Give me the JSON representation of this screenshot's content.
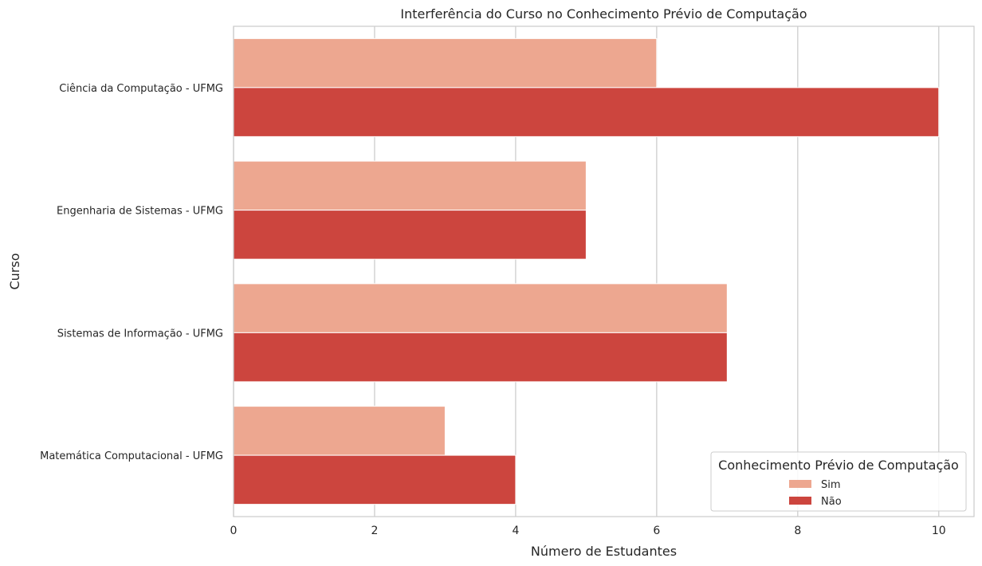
{
  "chart_data": {
    "type": "bar",
    "orientation": "horizontal",
    "title": "Interferência do Curso no Conhecimento Prévio de Computação",
    "xlabel": "Número de Estudantes",
    "ylabel": "Curso",
    "xlim": [
      0,
      10.5
    ],
    "xticks": [
      0,
      2,
      4,
      6,
      8,
      10
    ],
    "grid": true,
    "categories": [
      "Ciência da Computação - UFMG",
      "Engenharia de Sistemas - UFMG",
      "Sistemas de Informação - UFMG",
      "Matemática Computacional - UFMG"
    ],
    "series": [
      {
        "name": "Sim",
        "color": "#eda790",
        "values": [
          6,
          5,
          7,
          3
        ]
      },
      {
        "name": "Não",
        "color": "#cc453e",
        "values": [
          10,
          5,
          7,
          4
        ]
      }
    ],
    "legend": {
      "title": "Conhecimento Prévio de Computação",
      "position": "lower-right"
    }
  }
}
